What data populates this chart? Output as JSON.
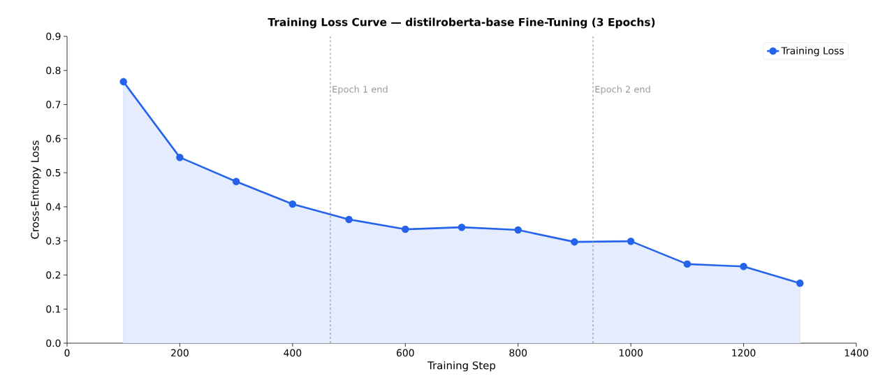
{
  "chart_data": {
    "type": "area",
    "title": "Training Loss Curve — distilroberta-base Fine-Tuning (3 Epochs)",
    "xlabel": "Training Step",
    "ylabel": "Cross-Entropy Loss",
    "x": [
      100,
      200,
      300,
      400,
      500,
      600,
      700,
      800,
      900,
      1000,
      1100,
      1200,
      1300
    ],
    "series": [
      {
        "name": "Training Loss",
        "color": "#2563eb",
        "values": [
          0.767,
          0.545,
          0.474,
          0.408,
          0.363,
          0.334,
          0.34,
          0.332,
          0.297,
          0.299,
          0.232,
          0.225,
          0.176
        ]
      }
    ],
    "xlim": [
      0,
      1400
    ],
    "xticks": [
      0,
      200,
      400,
      600,
      800,
      1000,
      1200,
      1400
    ],
    "ylim": [
      0,
      0.9
    ],
    "yticks": [
      {
        "value": 0,
        "label": "0.0"
      },
      0.1,
      0.2,
      0.3,
      0.4,
      0.5,
      0.6,
      0.7,
      0.8,
      0.9
    ],
    "ref_lines": [
      {
        "axis": "x",
        "value": 467,
        "label": "Epoch 1 end",
        "color": "#999999",
        "line_style": "dashed"
      },
      {
        "axis": "x",
        "value": 933,
        "label": "Epoch 2 end",
        "color": "#999999",
        "line_style": "dashed"
      }
    ],
    "legend": "top right",
    "marker": "circle",
    "line_style": "solid",
    "grid": false
  }
}
